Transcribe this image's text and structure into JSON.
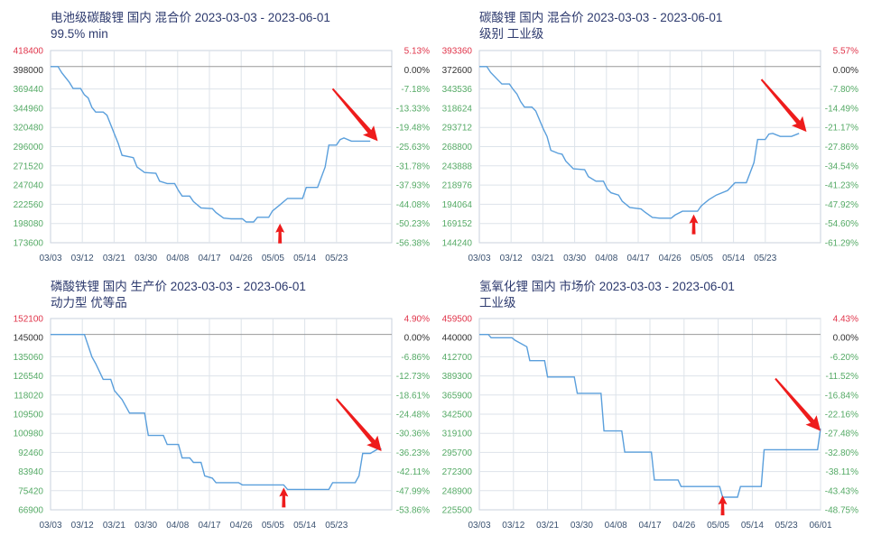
{
  "colors": {
    "line": "#5a9fdc",
    "grid": "#dde3ea",
    "frame": "#c9d2dc",
    "baseline": "#999999",
    "arrow": "#ee1c1c",
    "tick_green": "#55aa66",
    "tick_red": "#e0344a"
  },
  "chart_data": [
    {
      "type": "line",
      "title": "电池级碳酸锂 国内 混合价 2023-03-03 - 2023-06-01",
      "subtitle": "99.5% min",
      "x_ticks": [
        "03/03",
        "03/12",
        "03/21",
        "03/30",
        "04/08",
        "04/17",
        "04/26",
        "05/05",
        "05/14",
        "05/23"
      ],
      "y_left_ticks": [
        "418400",
        "398000",
        "369440",
        "344960",
        "320480",
        "296000",
        "271520",
        "247040",
        "222560",
        "198080",
        "173600"
      ],
      "y_right_ticks": [
        "5.13%",
        "0.00%",
        "-7.18%",
        "-13.33%",
        "-19.48%",
        "-25.63%",
        "-31.78%",
        "-37.93%",
        "-44.08%",
        "-50.23%",
        "-56.38%"
      ],
      "ylim": [
        173600,
        418400
      ],
      "base_value": 398000,
      "x_range_days": [
        0,
        90
      ],
      "x_tick_days": [
        0,
        9,
        18,
        27,
        36,
        45,
        54,
        63,
        72,
        81
      ],
      "series": [
        {
          "values": [
            [
              0,
              398000
            ],
            [
              2,
              398000
            ],
            [
              3,
              390000
            ],
            [
              5,
              378000
            ],
            [
              6,
              370000
            ],
            [
              8,
              370000
            ],
            [
              9,
              362000
            ],
            [
              10,
              358000
            ],
            [
              11,
              346000
            ],
            [
              12,
              340000
            ],
            [
              14,
              340000
            ],
            [
              15,
              336000
            ],
            [
              17,
              312000
            ],
            [
              18,
              300000
            ],
            [
              19,
              285000
            ],
            [
              21,
              283000
            ],
            [
              22,
              282000
            ],
            [
              23,
              270000
            ],
            [
              25,
              263000
            ],
            [
              28,
              262000
            ],
            [
              29,
              252000
            ],
            [
              31,
              249000
            ],
            [
              33,
              249000
            ],
            [
              34,
              240000
            ],
            [
              35,
              233000
            ],
            [
              37,
              233000
            ],
            [
              38,
              226000
            ],
            [
              40,
              218000
            ],
            [
              43,
              217000
            ],
            [
              44,
              212000
            ],
            [
              46,
              205000
            ],
            [
              48,
              204000
            ],
            [
              51,
              204000
            ],
            [
              52,
              200000
            ],
            [
              54,
              200000
            ],
            [
              55,
              206000
            ],
            [
              58,
              206000
            ],
            [
              59,
              214000
            ],
            [
              61,
              222000
            ],
            [
              63,
              230000
            ],
            [
              67,
              230000
            ],
            [
              68,
              244000
            ],
            [
              71,
              244000
            ],
            [
              73,
              270000
            ],
            [
              74,
              298000
            ],
            [
              76,
              298000
            ],
            [
              77,
              305000
            ],
            [
              78,
              307000
            ],
            [
              80,
              303000
            ],
            [
              85,
              303000
            ]
          ]
        }
      ],
      "arrows": [
        {
          "type": "up",
          "tip_day": 61,
          "tip_value": 198080
        },
        {
          "type": "diag",
          "tip_day": 87,
          "tip_value": 303000
        }
      ]
    },
    {
      "type": "line",
      "title": "碳酸锂 国内 混合价 2023-03-03 - 2023-06-01",
      "subtitle": "级别 工业级",
      "x_ticks": [
        "03/03",
        "03/12",
        "03/21",
        "03/30",
        "04/08",
        "04/17",
        "04/26",
        "05/05",
        "05/14",
        "05/23"
      ],
      "y_left_ticks": [
        "393360",
        "372600",
        "343536",
        "318624",
        "293712",
        "268800",
        "243888",
        "218976",
        "194064",
        "169152",
        "144240"
      ],
      "y_right_ticks": [
        "5.57%",
        "0.00%",
        "-7.80%",
        "-14.49%",
        "-21.17%",
        "-27.86%",
        "-34.54%",
        "-41.23%",
        "-47.92%",
        "-54.60%",
        "-61.29%"
      ],
      "ylim": [
        144240,
        393360
      ],
      "base_value": 372600,
      "x_range_days": [
        0,
        90
      ],
      "x_tick_days": [
        0,
        9,
        18,
        27,
        36,
        45,
        54,
        63,
        72,
        81
      ],
      "series": [
        {
          "values": [
            [
              0,
              372600
            ],
            [
              2,
              372600
            ],
            [
              3,
              365000
            ],
            [
              5,
              355000
            ],
            [
              6,
              350000
            ],
            [
              8,
              350000
            ],
            [
              9,
              343000
            ],
            [
              10,
              337000
            ],
            [
              11,
              327000
            ],
            [
              12,
              320000
            ],
            [
              14,
              320000
            ],
            [
              15,
              315000
            ],
            [
              17,
              292000
            ],
            [
              18,
              282000
            ],
            [
              19,
              264000
            ],
            [
              21,
              260000
            ],
            [
              22,
              259000
            ],
            [
              23,
              250000
            ],
            [
              25,
              240000
            ],
            [
              28,
              239000
            ],
            [
              29,
              230000
            ],
            [
              31,
              224000
            ],
            [
              33,
              224000
            ],
            [
              34,
              214000
            ],
            [
              35,
              209000
            ],
            [
              37,
              206000
            ],
            [
              38,
              198000
            ],
            [
              40,
              190000
            ],
            [
              43,
              188000
            ],
            [
              44,
              184000
            ],
            [
              46,
              177000
            ],
            [
              48,
              176000
            ],
            [
              51,
              176000
            ],
            [
              52,
              180000
            ],
            [
              54,
              185000
            ],
            [
              58,
              185000
            ],
            [
              59,
              192000
            ],
            [
              61,
              200000
            ],
            [
              63,
              206000
            ],
            [
              66,
              212000
            ],
            [
              68,
              222000
            ],
            [
              71,
              222000
            ],
            [
              73,
              248000
            ],
            [
              74,
              278000
            ],
            [
              76,
              278000
            ],
            [
              77,
              285000
            ],
            [
              78,
              286000
            ],
            [
              80,
              282000
            ],
            [
              83,
              282000
            ],
            [
              85,
              286000
            ]
          ]
        }
      ],
      "arrows": [
        {
          "type": "up",
          "tip_day": 57,
          "tip_value": 181000
        },
        {
          "type": "diag",
          "tip_day": 87,
          "tip_value": 288000
        }
      ]
    },
    {
      "type": "line",
      "title": "磷酸铁锂 国内 生产价 2023-03-03 - 2023-06-01",
      "subtitle": "动力型 优等品",
      "x_ticks": [
        "03/03",
        "03/12",
        "03/21",
        "03/30",
        "04/08",
        "04/17",
        "04/26",
        "05/05",
        "05/14",
        "05/23"
      ],
      "y_left_ticks": [
        "152100",
        "145000",
        "135060",
        "126540",
        "118020",
        "109500",
        "100980",
        "92460",
        "83940",
        "75420",
        "66900"
      ],
      "y_right_ticks": [
        "4.90%",
        "0.00%",
        "-6.86%",
        "-12.73%",
        "-18.61%",
        "-24.48%",
        "-30.36%",
        "-36.23%",
        "-42.11%",
        "-47.99%",
        "-53.86%"
      ],
      "ylim": [
        66900,
        152100
      ],
      "base_value": 145000,
      "x_range_days": [
        0,
        90
      ],
      "x_tick_days": [
        0,
        9,
        18,
        27,
        36,
        45,
        54,
        63,
        72,
        81
      ],
      "series": [
        {
          "values": [
            [
              0,
              145000
            ],
            [
              9,
              145000
            ],
            [
              10,
              140000
            ],
            [
              11,
              135000
            ],
            [
              12,
              132000
            ],
            [
              14,
              125000
            ],
            [
              16,
              125000
            ],
            [
              17,
              120000
            ],
            [
              19,
              116000
            ],
            [
              21,
              110000
            ],
            [
              25,
              110000
            ],
            [
              26,
              100000
            ],
            [
              30,
              100000
            ],
            [
              31,
              96000
            ],
            [
              34,
              96000
            ],
            [
              35,
              90000
            ],
            [
              37,
              90000
            ],
            [
              38,
              88000
            ],
            [
              40,
              88000
            ],
            [
              41,
              82000
            ],
            [
              43,
              81000
            ],
            [
              44,
              79000
            ],
            [
              50,
              79000
            ],
            [
              51,
              78000
            ],
            [
              62,
              78000
            ],
            [
              63,
              76000
            ],
            [
              74,
              76000
            ],
            [
              75,
              79000
            ],
            [
              81,
              79000
            ],
            [
              82,
              82000
            ],
            [
              83,
              92000
            ],
            [
              85,
              92000
            ],
            [
              87,
              94000
            ],
            [
              88,
              94000
            ]
          ]
        }
      ],
      "arrows": [
        {
          "type": "up",
          "tip_day": 62,
          "tip_value": 76800
        },
        {
          "type": "diag",
          "tip_day": 88,
          "tip_value": 93000
        }
      ]
    },
    {
      "type": "line",
      "title": "氢氧化锂 国内 市场价 2023-03-03 - 2023-06-01",
      "subtitle": "工业级",
      "x_ticks": [
        "03/03",
        "03/12",
        "03/21",
        "03/30",
        "04/08",
        "04/17",
        "04/26",
        "05/05",
        "05/14",
        "05/23",
        "06/01"
      ],
      "y_left_ticks": [
        "459500",
        "440000",
        "412700",
        "389300",
        "365900",
        "342500",
        "319100",
        "295700",
        "272300",
        "248900",
        "225500"
      ],
      "y_right_ticks": [
        "4.43%",
        "0.00%",
        "-6.20%",
        "-11.52%",
        "-16.84%",
        "-22.16%",
        "-27.48%",
        "-32.80%",
        "-38.11%",
        "-43.43%",
        "-48.75%"
      ],
      "ylim": [
        225500,
        459500
      ],
      "base_value": 440000,
      "x_range_days": [
        0,
        90
      ],
      "x_tick_days": [
        0,
        9,
        18,
        27,
        36,
        45,
        54,
        63,
        72,
        81,
        90
      ],
      "series": [
        {
          "values": [
            [
              0,
              440000
            ],
            [
              3,
              440000
            ],
            [
              4,
              436000
            ],
            [
              11,
              436000
            ],
            [
              12,
              433000
            ],
            [
              16,
              425000
            ],
            [
              17,
              408000
            ],
            [
              22,
              408000
            ],
            [
              23,
              388000
            ],
            [
              32,
              388000
            ],
            [
              33,
              368000
            ],
            [
              41,
              368000
            ],
            [
              42,
              322000
            ],
            [
              48,
              322000
            ],
            [
              49,
              296000
            ],
            [
              58,
              296000
            ],
            [
              59,
              262000
            ],
            [
              67,
              262000
            ],
            [
              68,
              254000
            ],
            [
              81,
              254000
            ],
            [
              82,
              241000
            ],
            [
              87,
              241000
            ],
            [
              88,
              254000
            ],
            [
              95,
              254000
            ],
            [
              96,
              299000
            ],
            [
              114,
              299000
            ],
            [
              115,
              325000
            ]
          ]
        }
      ],
      "x_data_days_span": 115,
      "arrows": [
        {
          "type": "up",
          "tip_day": 82,
          "tip_value": 243000
        },
        {
          "type": "diag",
          "tip_day": 115,
          "tip_value": 322000
        }
      ]
    }
  ]
}
